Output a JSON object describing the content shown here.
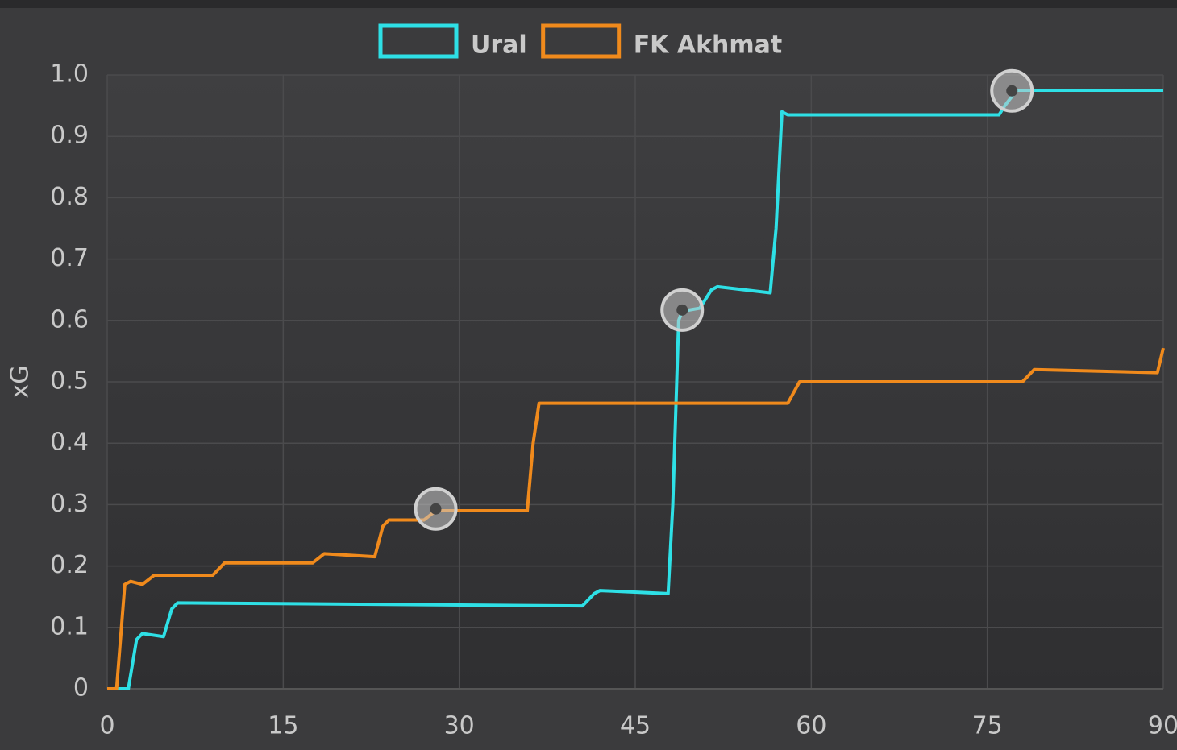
{
  "chart_data": {
    "type": "line",
    "y_label": "xG",
    "xlim": [
      0,
      90
    ],
    "xticks": [
      0,
      15,
      30,
      45,
      60,
      75,
      90
    ],
    "ylim": [
      0,
      1
    ],
    "yticks": [
      0,
      0.1,
      0.2,
      0.3,
      0.4,
      0.5,
      0.6,
      0.7,
      0.8,
      0.9,
      {
        "value": 1,
        "label": "1.0"
      }
    ],
    "grid": true,
    "legend": "top",
    "series": [
      {
        "name": "Ural",
        "color": "#2ee0e6",
        "x": [
          0,
          1.8,
          2.5,
          3,
          4.8,
          5.5,
          6,
          40.5,
          41.5,
          42,
          47.8,
          48.2,
          48.7,
          49,
          50.5,
          51.5,
          52,
          56.5,
          57,
          57.5,
          58,
          76,
          76.5,
          77.5,
          90
        ],
        "values": [
          0,
          0,
          0.08,
          0.09,
          0.085,
          0.13,
          0.14,
          0.135,
          0.155,
          0.16,
          0.155,
          0.3,
          0.6,
          0.615,
          0.62,
          0.65,
          0.655,
          0.645,
          0.75,
          0.94,
          0.935,
          0.935,
          0.95,
          0.975,
          0.975
        ],
        "goals": [
          {
            "x": 49,
            "y": 0.617
          },
          {
            "x": 77.1,
            "y": 0.974
          }
        ]
      },
      {
        "name": "FK Akhmat",
        "color": "#f08a1c",
        "x": [
          0,
          0.8,
          1.5,
          2,
          3,
          4,
          9,
          10,
          17.5,
          18.5,
          22.8,
          23.5,
          24,
          27,
          28,
          35.8,
          36.3,
          36.8,
          58,
          59,
          78,
          79,
          89.5,
          90
        ],
        "values": [
          0,
          0,
          0.17,
          0.175,
          0.17,
          0.185,
          0.185,
          0.205,
          0.205,
          0.22,
          0.215,
          0.265,
          0.275,
          0.275,
          0.29,
          0.29,
          0.4,
          0.465,
          0.465,
          0.5,
          0.5,
          0.52,
          0.515,
          0.555
        ],
        "goals": [
          {
            "x": 28,
            "y": 0.293
          }
        ]
      }
    ]
  }
}
